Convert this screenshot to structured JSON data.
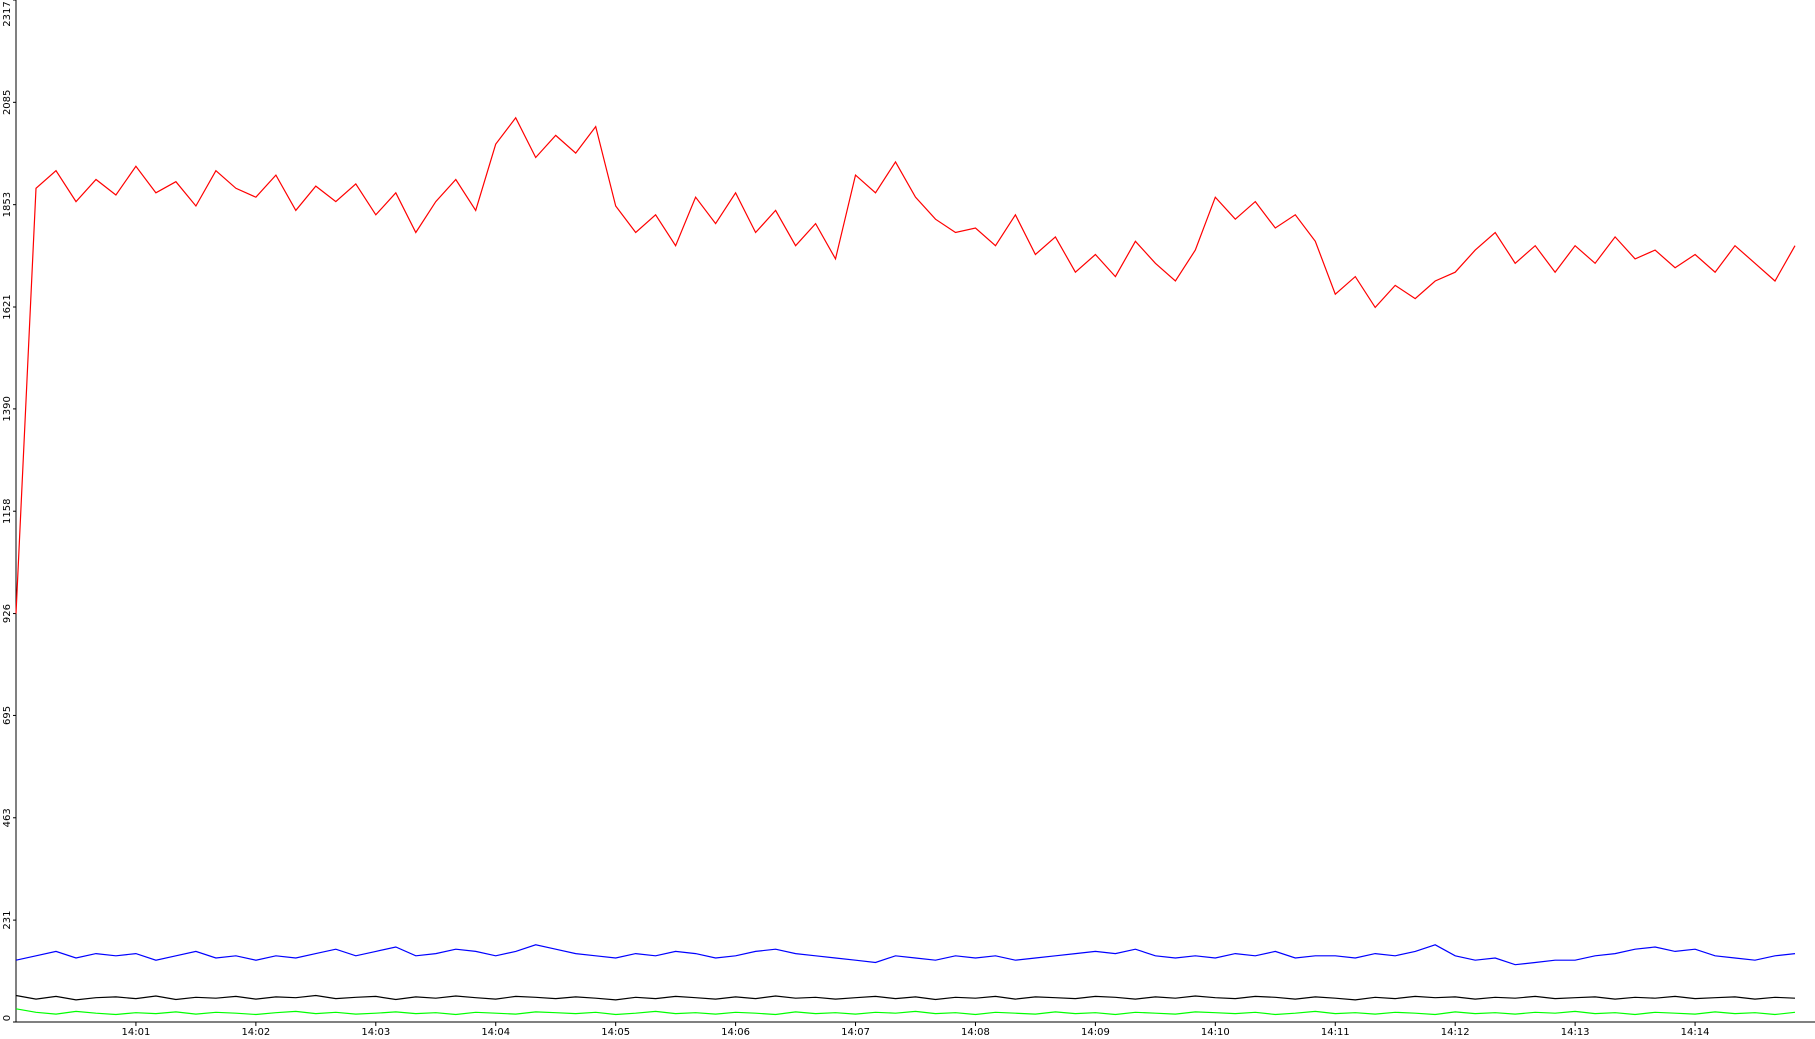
{
  "chart_data": {
    "type": "line",
    "xlim": [
      0,
      90
    ],
    "xticks": [
      {
        "value": 6,
        "label": "14:01"
      },
      {
        "value": 12,
        "label": "14:02"
      },
      {
        "value": 18,
        "label": "14:03"
      },
      {
        "value": 24,
        "label": "14:04"
      },
      {
        "value": 30,
        "label": "14:05"
      },
      {
        "value": 36,
        "label": "14:06"
      },
      {
        "value": 42,
        "label": "14:07"
      },
      {
        "value": 48,
        "label": "14:08"
      },
      {
        "value": 54,
        "label": "14:09"
      },
      {
        "value": 60,
        "label": "14:10"
      },
      {
        "value": 66,
        "label": "14:11"
      },
      {
        "value": 72,
        "label": "14:12"
      },
      {
        "value": 78,
        "label": "14:13"
      },
      {
        "value": 84,
        "label": "14:14"
      }
    ],
    "ylim": [
      0,
      2317
    ],
    "yticks": [
      0,
      231,
      463,
      695,
      926,
      1158,
      1390,
      1621,
      1853,
      2085,
      2317
    ],
    "series": [
      {
        "color": "#ff0000",
        "values": [
          926,
          1890,
          1930,
          1860,
          1910,
          1875,
          1940,
          1880,
          1905,
          1850,
          1930,
          1890,
          1870,
          1920,
          1840,
          1895,
          1860,
          1900,
          1830,
          1880,
          1790,
          1860,
          1910,
          1840,
          1990,
          2050,
          1960,
          2010,
          1970,
          2030,
          1850,
          1790,
          1830,
          1760,
          1870,
          1810,
          1880,
          1790,
          1840,
          1760,
          1810,
          1730,
          1920,
          1880,
          1950,
          1870,
          1820,
          1790,
          1800,
          1760,
          1830,
          1740,
          1780,
          1700,
          1740,
          1690,
          1770,
          1720,
          1680,
          1750,
          1870,
          1820,
          1860,
          1800,
          1830,
          1770,
          1650,
          1690,
          1620,
          1670,
          1640,
          1680,
          1700,
          1750,
          1790,
          1720,
          1760,
          1700,
          1760,
          1720,
          1780,
          1730,
          1750,
          1710,
          1740,
          1700,
          1760,
          1720,
          1680,
          1760
        ]
      },
      {
        "color": "#0000ff",
        "values": [
          140,
          150,
          160,
          145,
          155,
          150,
          155,
          140,
          150,
          160,
          145,
          150,
          140,
          150,
          145,
          155,
          165,
          150,
          160,
          170,
          150,
          155,
          165,
          160,
          150,
          160,
          175,
          165,
          155,
          150,
          145,
          155,
          150,
          160,
          155,
          145,
          150,
          160,
          165,
          155,
          150,
          145,
          140,
          135,
          150,
          145,
          140,
          150,
          145,
          150,
          140,
          145,
          150,
          155,
          160,
          155,
          165,
          150,
          145,
          150,
          145,
          155,
          150,
          160,
          145,
          150,
          150,
          145,
          155,
          150,
          160,
          175,
          150,
          140,
          145,
          130,
          135,
          140,
          140,
          150,
          155,
          165,
          170,
          160,
          165,
          150,
          145,
          140,
          150,
          155
        ]
      },
      {
        "color": "#000000",
        "values": [
          60,
          52,
          58,
          50,
          55,
          57,
          53,
          59,
          51,
          56,
          54,
          58,
          52,
          57,
          55,
          60,
          53,
          56,
          58,
          51,
          57,
          54,
          59,
          55,
          52,
          58,
          56,
          53,
          57,
          54,
          50,
          56,
          53,
          58,
          55,
          52,
          57,
          53,
          59,
          54,
          56,
          52,
          55,
          58,
          53,
          57,
          51,
          56,
          54,
          58,
          52,
          57,
          55,
          53,
          58,
          56,
          52,
          57,
          54,
          59,
          55,
          53,
          58,
          56,
          52,
          57,
          54,
          50,
          56,
          53,
          58,
          55,
          57,
          52,
          56,
          54,
          58,
          53,
          55,
          57,
          52,
          56,
          54,
          58,
          53,
          55,
          57,
          52,
          56,
          54
        ]
      },
      {
        "color": "#00ff00",
        "values": [
          30,
          22,
          18,
          24,
          20,
          17,
          21,
          19,
          23,
          18,
          22,
          20,
          17,
          21,
          24,
          19,
          22,
          18,
          20,
          23,
          19,
          21,
          17,
          22,
          20,
          18,
          23,
          21,
          19,
          22,
          17,
          20,
          24,
          19,
          21,
          18,
          22,
          20,
          17,
          23,
          19,
          21,
          18,
          22,
          20,
          24,
          19,
          21,
          17,
          22,
          20,
          18,
          23,
          19,
          21,
          17,
          22,
          20,
          18,
          23,
          21,
          19,
          22,
          17,
          20,
          24,
          19,
          21,
          18,
          22,
          20,
          17,
          23,
          19,
          21,
          18,
          22,
          20,
          24,
          19,
          21,
          17,
          22,
          20,
          18,
          23,
          19,
          21,
          17,
          22
        ]
      }
    ]
  }
}
